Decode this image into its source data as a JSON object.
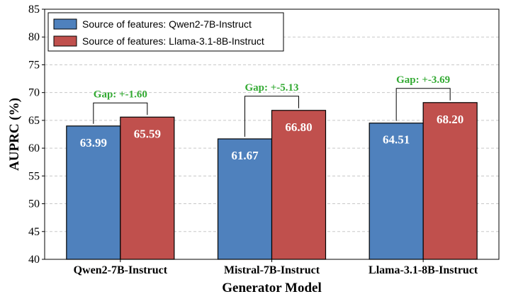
{
  "chart_data": {
    "type": "bar",
    "xlabel": "Generator Model",
    "ylabel": "AUPRC (%)",
    "ylim": [
      40,
      85
    ],
    "yticks": [
      40,
      45,
      50,
      55,
      60,
      65,
      70,
      75,
      80,
      85
    ],
    "grid": "horizontal",
    "legend_position": "top-left",
    "categories": [
      "Qwen2-7B-Instruct",
      "Mistral-7B-Instruct",
      "Llama-3.1-8B-Instruct"
    ],
    "series": [
      {
        "name": "Source of features: Qwen2-7B-Instruct",
        "color": "#4f81bd",
        "values": [
          63.99,
          61.67,
          64.51
        ],
        "labels": [
          "63.99",
          "61.67",
          "64.51"
        ]
      },
      {
        "name": "Source of features: Llama-3.1-8B-Instruct",
        "color": "#c0504d",
        "values": [
          65.59,
          66.8,
          68.2
        ],
        "labels": [
          "65.59",
          "66.80",
          "68.20"
        ]
      }
    ],
    "annotations": [
      {
        "category": "Qwen2-7B-Instruct",
        "text": "Gap: +-1.60",
        "color": "#33aa33"
      },
      {
        "category": "Mistral-7B-Instruct",
        "text": "Gap: +-5.13",
        "color": "#33aa33"
      },
      {
        "category": "Llama-3.1-8B-Instruct",
        "text": "Gap: +-3.69",
        "color": "#33aa33"
      }
    ]
  }
}
